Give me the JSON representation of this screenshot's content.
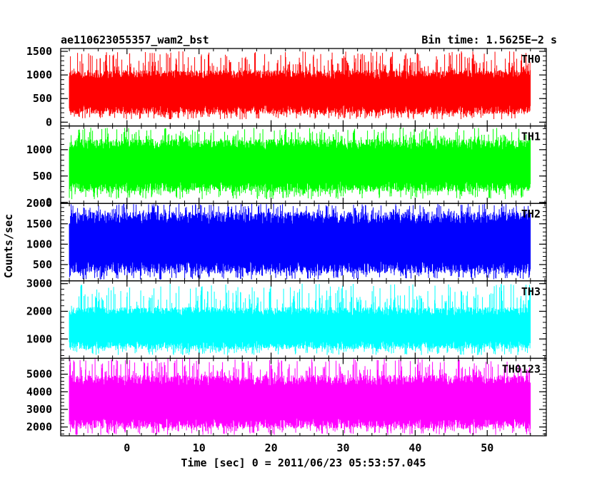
{
  "header": {
    "left_title": "ae110623055357_wam2_bst",
    "right_title": "Bin time: 1.5625E−2 s"
  },
  "chart_data": {
    "type": "line",
    "title": "ae110623055357_wam2_bst",
    "subtitle": "Bin time: 1.5625E−2 s",
    "xlabel": "Time [sec] 0 = 2011/06/23 05:53:57.045",
    "ylabel": "Counts/sec",
    "xlim": [
      -9.2,
      58.2
    ],
    "x_ticks": [
      0,
      10,
      20,
      30,
      40,
      50
    ],
    "x_tick_labels": [
      "0",
      "10",
      "20",
      "30",
      "40",
      "50"
    ],
    "data_range": [
      -8,
      56
    ],
    "bin_time": 0.015625,
    "panels": [
      {
        "name": "TH0",
        "color": "#ff0000",
        "ylim": [
          -80,
          1560
        ],
        "y_ticks": [
          0,
          500,
          1000,
          1500
        ],
        "y_tick_labels": [
          "0",
          "500",
          "1000",
          "1500"
        ],
        "band_low": 260,
        "band_high": 1010,
        "spike_min": 60,
        "spike_max": 1500
      },
      {
        "name": "TH1",
        "color": "#00ff00",
        "ylim": [
          -20,
          1450
        ],
        "y_ticks": [
          0,
          500,
          1000
        ],
        "y_tick_labels": [
          "0",
          "500",
          "1000"
        ],
        "band_low": 300,
        "band_high": 1100,
        "spike_min": 60,
        "spike_max": 1420
      },
      {
        "name": "TH2",
        "color": "#0000ff",
        "ylim": [
          100,
          2000
        ],
        "y_ticks": [
          500,
          1000,
          1500,
          2000
        ],
        "y_tick_labels": [
          "500",
          "1000",
          "1500",
          "2000"
        ],
        "band_low": 430,
        "band_high": 1640,
        "spike_min": 130,
        "spike_max": 1990
      },
      {
        "name": "TH3",
        "color": "#00ffff",
        "ylim": [
          300,
          3100
        ],
        "y_ticks": [
          1000,
          2000,
          3000
        ],
        "y_tick_labels": [
          "1000",
          "2000",
          "3000"
        ],
        "band_low": 780,
        "band_high": 2000,
        "spike_min": 420,
        "spike_max": 3000
      },
      {
        "name": "TH0123",
        "color": "#ff00ff",
        "ylim": [
          1500,
          5900
        ],
        "y_ticks": [
          2000,
          3000,
          4000,
          5000
        ],
        "y_tick_labels": [
          "2000",
          "3000",
          "4000",
          "5000"
        ],
        "band_low": 2200,
        "band_high": 4650,
        "spike_min": 1550,
        "spike_max": 5880
      }
    ]
  }
}
